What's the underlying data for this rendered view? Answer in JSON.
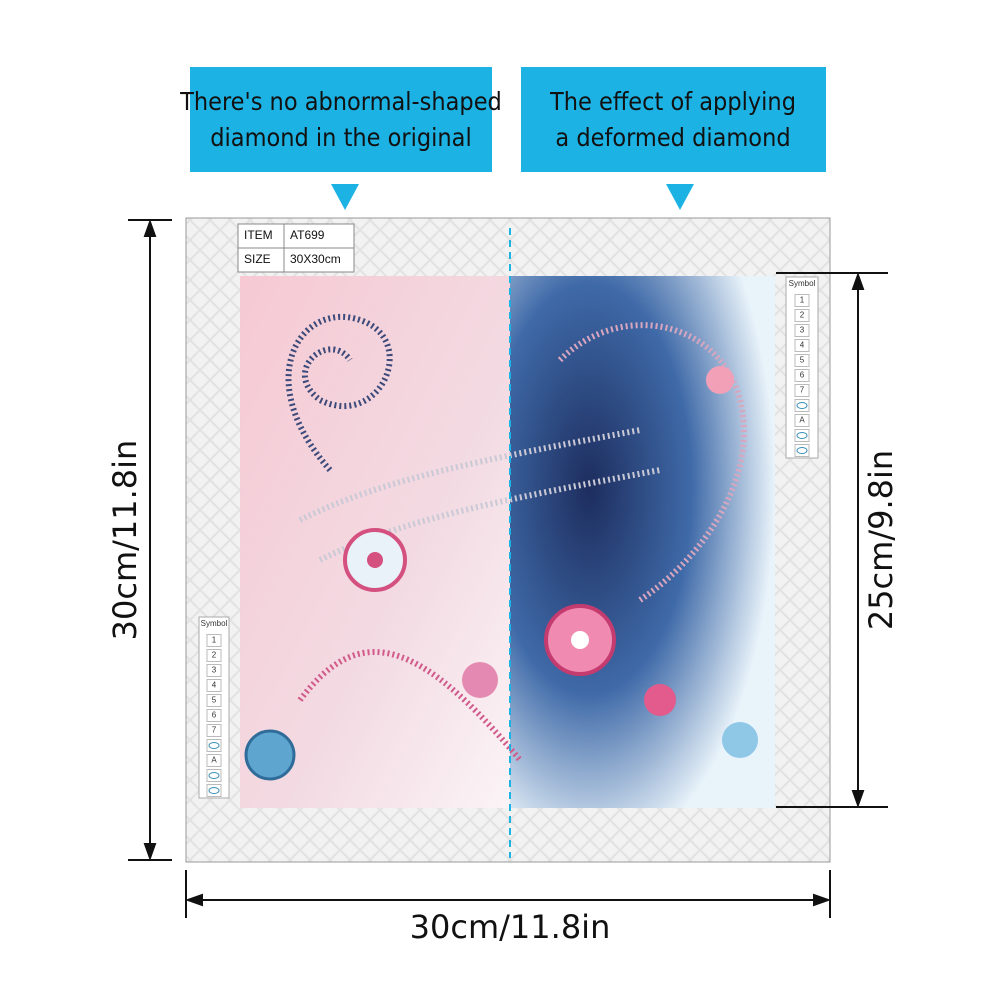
{
  "callouts": [
    {
      "lines": [
        "There's no abnormal-shaped",
        "diamond in the original"
      ]
    },
    {
      "lines": [
        "The effect of applying",
        "a deformed diamond"
      ]
    }
  ],
  "spec_table": {
    "rows": [
      [
        "ITEM",
        "AT699"
      ],
      [
        "SIZE",
        "30X30cm"
      ]
    ]
  },
  "symbol_legend": {
    "title": "Symbol",
    "labels": [
      "1",
      "2",
      "3",
      "4",
      "5",
      "6",
      "7",
      "A"
    ]
  },
  "dimensions": {
    "height": "30cm/11.8in",
    "width": "30cm/11.8in",
    "image_height": "25cm/9.8in"
  }
}
